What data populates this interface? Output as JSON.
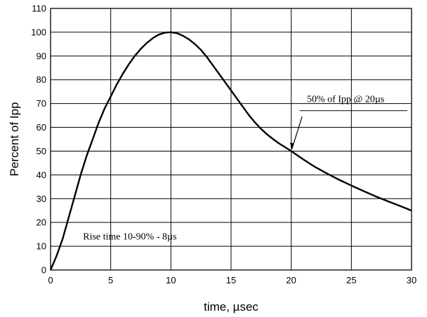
{
  "chart_data": {
    "type": "line",
    "title": "",
    "xlabel": "time, µsec",
    "ylabel": "Percent of Ipp",
    "xlim": [
      0,
      30
    ],
    "ylim": [
      0,
      110
    ],
    "x_ticks": [
      0,
      5,
      10,
      15,
      20,
      25,
      30
    ],
    "y_ticks": [
      0,
      10,
      20,
      30,
      40,
      50,
      60,
      70,
      80,
      90,
      100,
      110
    ],
    "grid": true,
    "legend": "none",
    "series": [
      {
        "x": [
          0,
          0.5,
          1,
          1.5,
          2,
          2.5,
          3,
          3.5,
          4,
          4.5,
          5,
          5.5,
          6,
          6.5,
          7,
          7.5,
          8,
          8.5,
          9,
          9.5,
          10,
          10.5,
          11,
          11.5,
          12,
          12.5,
          13,
          13.5,
          14,
          14.5,
          15,
          15.5,
          16,
          16.5,
          17,
          17.5,
          18,
          18.5,
          19,
          19.5,
          20,
          21,
          22,
          23,
          24,
          25,
          26,
          27,
          28,
          29,
          30
        ],
        "y": [
          0,
          6,
          13,
          22,
          31,
          40,
          48,
          55,
          62,
          68,
          73,
          78,
          82.5,
          86.5,
          90,
          93,
          95.5,
          97.5,
          99,
          99.8,
          100,
          99.6,
          98.5,
          97,
          95,
          92.5,
          89.5,
          86,
          82.5,
          79,
          75.5,
          72,
          68.5,
          65,
          62,
          59.3,
          57,
          55,
          53.2,
          51.6,
          50,
          46.5,
          43.3,
          40.5,
          37.9,
          35.5,
          33.2,
          31,
          29,
          27,
          25
        ]
      }
    ],
    "annotations": [
      {
        "text": "50% of Ipp @ 20µs",
        "target": [
          20,
          50
        ]
      },
      {
        "text": "Rise time 10-90% - 8µs"
      }
    ]
  }
}
